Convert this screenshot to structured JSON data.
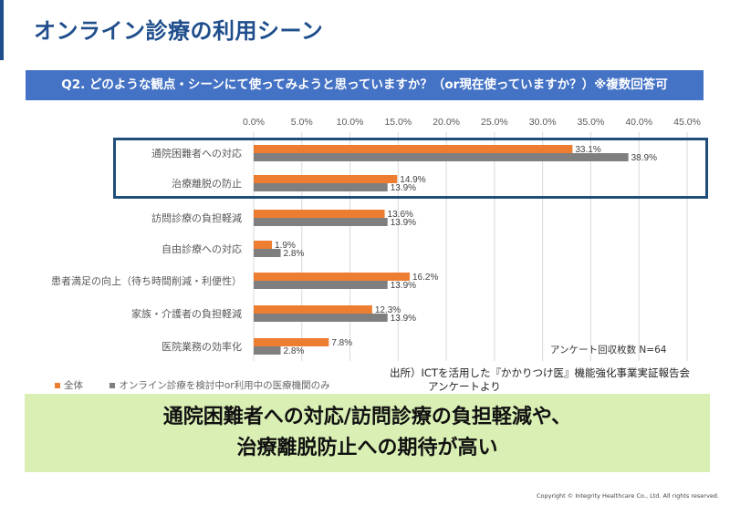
{
  "header": {
    "title": "オンライン診療の利用シーン",
    "question": "Q2. どのような観点・シーンにて使ってみようと思っていますか？（or現在使っていますか？）※複数回答可"
  },
  "colors": {
    "brand": "#1F4E8C",
    "question_bg": "#4472C4",
    "series_all": "#ED7D31",
    "series_online": "#7F7F7F",
    "conclusion_bg": "#D9EFB3"
  },
  "chart_data": {
    "type": "bar",
    "orientation": "horizontal",
    "categories": [
      "通院困難者への対応",
      "治療離脱の防止",
      "訪問診療の負担軽減",
      "自由診療への対応",
      "患者満足の向上（待ち時間削減・利便性）",
      "家族・介護者の負担軽減",
      "医院業務の効率化"
    ],
    "series": [
      {
        "name": "全体",
        "color": "#ED7D31",
        "values": [
          33.1,
          14.9,
          13.6,
          1.9,
          16.2,
          12.3,
          7.8
        ],
        "labels": [
          "33.1%",
          "14.9%",
          "13.6%",
          "1.9%",
          "16.2%",
          "12.3%",
          "7.8%"
        ]
      },
      {
        "name": "オンライン診療を検討中or利用中の医療機関のみ",
        "color": "#7F7F7F",
        "values": [
          38.9,
          13.9,
          13.9,
          2.8,
          13.9,
          13.9,
          2.8
        ],
        "labels": [
          "38.9%",
          "13.9%",
          "13.9%",
          "2.8%",
          "13.9%",
          "13.9%",
          "2.8%"
        ]
      }
    ],
    "xlim": [
      0,
      45
    ],
    "xticks": [
      0,
      5,
      10,
      15,
      20,
      25,
      30,
      35,
      40,
      45
    ],
    "xtick_labels": [
      "0.0%",
      "5.0%",
      "10.0%",
      "15.0%",
      "20.0%",
      "25.0%",
      "30.0%",
      "35.0%",
      "40.0%",
      "45.0%"
    ],
    "grid": true,
    "legend": "bottom-left",
    "highlighted_categories": [
      "通院困難者への対応",
      "治療離脱の防止"
    ]
  },
  "note": "アンケート回収枚数 N=64",
  "source": {
    "line1": "出所）ICTを活用した『かかりつけ医』機能強化事業実証報告会",
    "line2": "アンケートより"
  },
  "conclusion": {
    "line1": "通院困難者への対応/訪問診療の負担軽減や、",
    "line2": "治療離脱防止への期待が高い"
  },
  "footer": {
    "copyright": "Copyright © Integrity Healthcare Co., Ltd. All rights reserved."
  }
}
